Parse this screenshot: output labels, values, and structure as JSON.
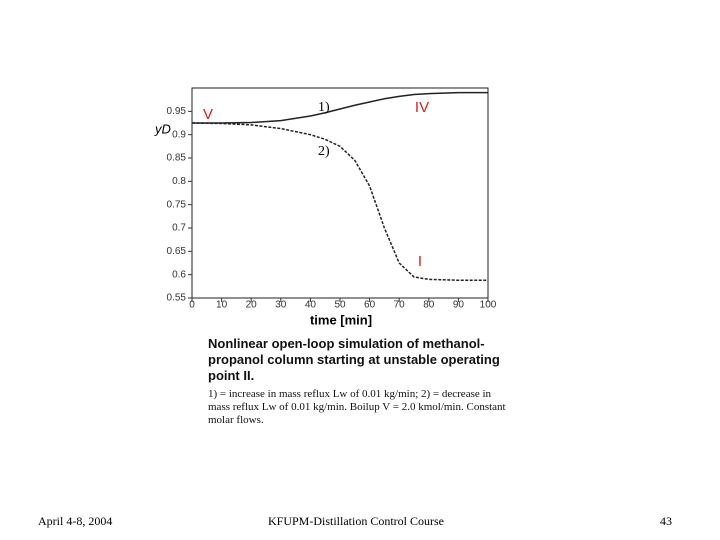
{
  "chart_data": {
    "type": "line",
    "xlabel": "time [min]",
    "ylabel": "yD",
    "x": [
      0,
      10,
      20,
      30,
      40,
      45,
      50,
      55,
      60,
      65,
      70,
      75,
      80,
      90,
      100
    ],
    "series": [
      {
        "name": "1)",
        "color": "#222222",
        "values": [
          0.925,
          0.925,
          0.926,
          0.93,
          0.94,
          0.947,
          0.955,
          0.963,
          0.97,
          0.977,
          0.982,
          0.986,
          0.988,
          0.99,
          0.99
        ]
      },
      {
        "name": "2)",
        "color": "#222222",
        "values": [
          0.925,
          0.924,
          0.921,
          0.913,
          0.9,
          0.89,
          0.875,
          0.845,
          0.79,
          0.7,
          0.625,
          0.595,
          0.59,
          0.588,
          0.588
        ]
      }
    ],
    "xlim": [
      0,
      100
    ],
    "xticks": [
      0,
      10,
      20,
      30,
      40,
      50,
      60,
      70,
      80,
      90,
      100
    ],
    "ylim": [
      0.55,
      1.0
    ],
    "yticks": [
      0.55,
      0.6,
      0.65,
      0.7,
      0.75,
      0.8,
      0.85,
      0.9,
      0.95
    ],
    "annotations": [
      "V",
      "IV",
      "I"
    ],
    "annotation_color": "#d42020"
  },
  "caption": {
    "title": "Nonlinear open-loop simulation of methanol-propanol column starting at unstable operating point II.",
    "text": "1) = increase in mass reflux Lw of 0.01 kg/min; 2) = decrease in mass reflux Lw of 0.01 kg/min. Boilup V = 2.0 kmol/min. Constant molar flows."
  },
  "footer": {
    "date": "April 4-8, 2004",
    "course": "KFUPM-Distillation Control Course",
    "page": "43"
  }
}
